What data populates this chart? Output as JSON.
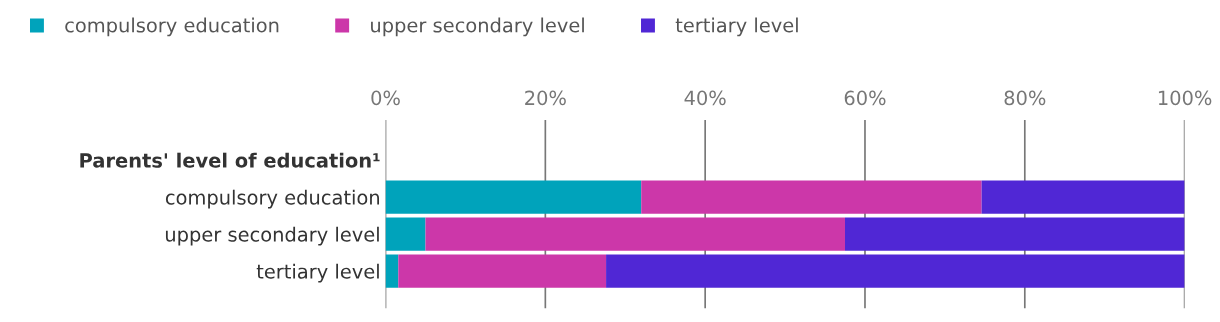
{
  "chart_data": {
    "type": "bar",
    "orientation": "horizontal",
    "stacked": true,
    "categories": [
      "Parents' level of education¹",
      "compulsory education",
      "upper secondary level",
      "tertiary level"
    ],
    "series": [
      {
        "name": "compulsory education",
        "color": "#00a3bb",
        "values": [
          null,
          32.0,
          5.0,
          1.6
        ]
      },
      {
        "name": "upper secondary level",
        "color": "#cc37a9",
        "values": [
          null,
          42.6,
          52.5,
          26.0
        ]
      },
      {
        "name": "tertiary level",
        "color": "#5027d5",
        "values": [
          null,
          25.4,
          42.5,
          72.4
        ]
      }
    ],
    "xlim": [
      0,
      100
    ],
    "xticks": [
      {
        "value": 0,
        "label": "0%"
      },
      {
        "value": 20,
        "label": "20%"
      },
      {
        "value": 40,
        "label": "40%"
      },
      {
        "value": 60,
        "label": "60%"
      },
      {
        "value": 80,
        "label": "80%"
      },
      {
        "value": 100,
        "label": "100%"
      }
    ],
    "grid": "x",
    "legend": "top left"
  }
}
